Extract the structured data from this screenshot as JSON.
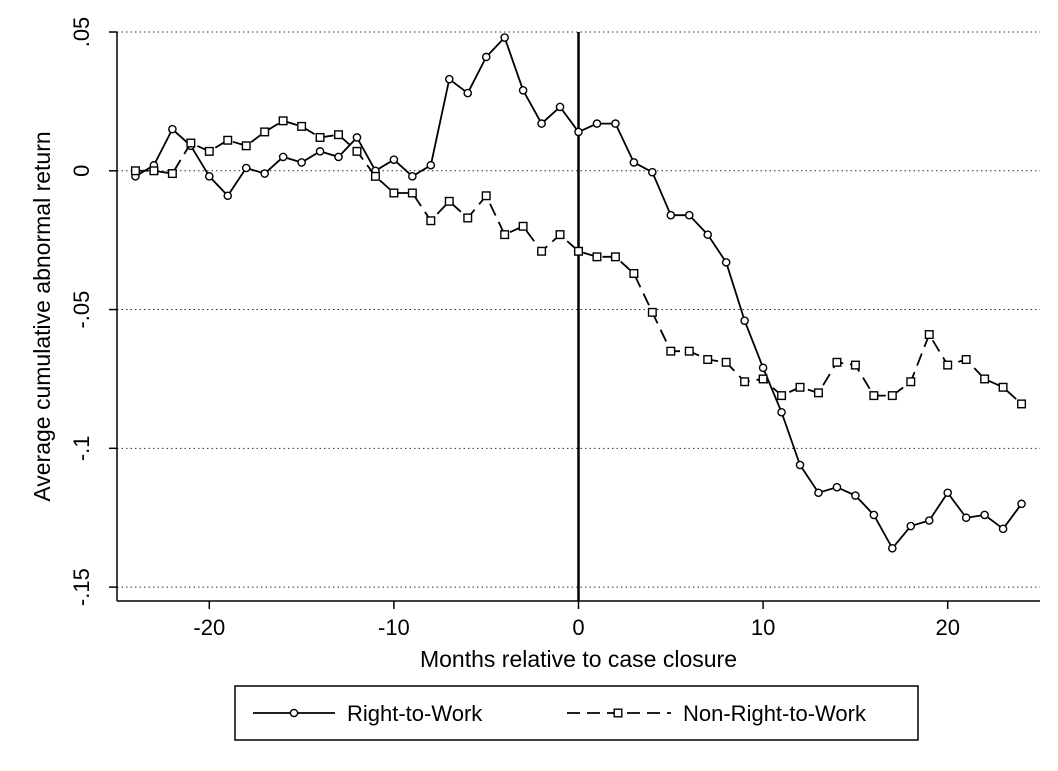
{
  "chart_data": {
    "type": "line",
    "xlabel": "Months relative to case closure",
    "ylabel": "Average cumulative abnormal return",
    "xlim": [
      -25,
      25
    ],
    "ylim": [
      -0.155,
      0.05
    ],
    "x_ticks": [
      -20,
      -10,
      0,
      10,
      20
    ],
    "x_tick_labels": [
      "-20",
      "-10",
      "0",
      "10",
      "20"
    ],
    "y_ticks": [
      0.05,
      0,
      -0.05,
      -0.1,
      -0.15
    ],
    "y_tick_labels": [
      ".05",
      "0",
      "-.05",
      "-.1",
      "-.15"
    ],
    "grid": "horizontal dotted",
    "reference_line_x": 0,
    "legend_position": "bottom",
    "x": [
      -24,
      -23,
      -22,
      -21,
      -20,
      -19,
      -18,
      -17,
      -16,
      -15,
      -14,
      -13,
      -12,
      -11,
      -10,
      -9,
      -8,
      -7,
      -6,
      -5,
      -4,
      -3,
      -2,
      -1,
      0,
      1,
      2,
      3,
      4,
      5,
      6,
      7,
      8,
      9,
      10,
      11,
      12,
      13,
      14,
      15,
      16,
      17,
      18,
      19,
      20,
      21,
      22,
      23,
      24
    ],
    "series": [
      {
        "name": "Right-to-Work",
        "line_style": "solid",
        "marker": "circle",
        "color": "#000000",
        "values": [
          -0.002,
          0.002,
          0.015,
          0.009,
          -0.002,
          -0.009,
          0.001,
          -0.001,
          0.005,
          0.003,
          0.007,
          0.005,
          0.012,
          0.0,
          0.004,
          -0.002,
          0.002,
          0.033,
          0.028,
          0.041,
          0.048,
          0.029,
          0.017,
          0.023,
          0.014,
          0.017,
          0.017,
          0.003,
          -0.0005,
          -0.016,
          -0.016,
          -0.023,
          -0.033,
          -0.054,
          -0.071,
          -0.087,
          -0.106,
          -0.116,
          -0.114,
          -0.117,
          -0.124,
          -0.136,
          -0.128,
          -0.126,
          -0.116,
          -0.125,
          -0.124,
          -0.129,
          -0.12
        ]
      },
      {
        "name": "Non-Right-to-Work",
        "line_style": "dashed",
        "marker": "square",
        "color": "#000000",
        "values": [
          0.0,
          0.0,
          -0.001,
          0.01,
          0.007,
          0.011,
          0.009,
          0.014,
          0.018,
          0.016,
          0.012,
          0.013,
          0.007,
          -0.002,
          -0.008,
          -0.008,
          -0.018,
          -0.011,
          -0.017,
          -0.009,
          -0.023,
          -0.02,
          -0.029,
          -0.023,
          -0.029,
          -0.031,
          -0.031,
          -0.037,
          -0.051,
          -0.065,
          -0.065,
          -0.068,
          -0.069,
          -0.076,
          -0.075,
          -0.081,
          -0.078,
          -0.08,
          -0.069,
          -0.07,
          -0.081,
          -0.081,
          -0.076,
          -0.059,
          -0.07,
          -0.068,
          -0.075,
          -0.078,
          -0.084
        ]
      }
    ]
  }
}
